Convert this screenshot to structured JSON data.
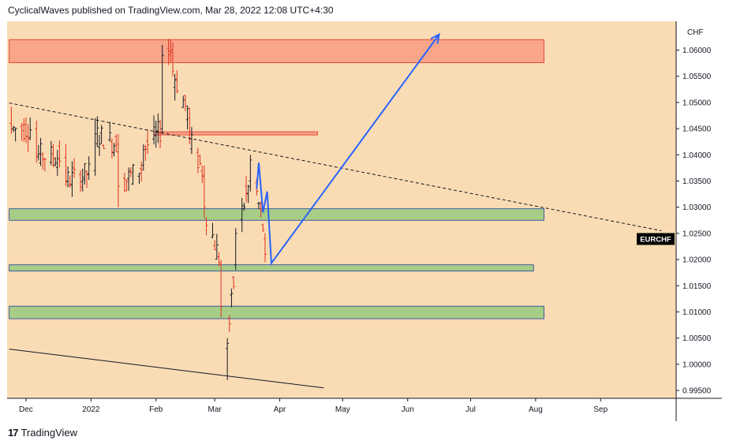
{
  "header": {
    "attribution": "CyclicalWaves published on TradingView.com, Mar 28, 2022 12:08 UTC+4:30"
  },
  "footer": {
    "logo_glyph": "17",
    "brand": "TradingView"
  },
  "chart_data": {
    "type": "candlestick",
    "symbol": "EURCHF",
    "currency": "CHF",
    "ylim": [
      0.9935,
      1.0655
    ],
    "y_ticks": [
      "1.06000",
      "1.05500",
      "1.05000",
      "1.04500",
      "1.04000",
      "1.03500",
      "1.03000",
      "1.02500",
      "1.02000",
      "1.01500",
      "1.01000",
      "1.00500",
      "1.00000",
      "0.99500"
    ],
    "x_ticks": [
      "Dec",
      "2022",
      "Feb",
      "Mar",
      "Apr",
      "May",
      "Jun",
      "Jul",
      "Aug",
      "Sep"
    ],
    "last_price_label": "EURCHF",
    "colors": {
      "background": "#fadcb4",
      "up": "#131722",
      "down": "#e0301e",
      "projection": "#2962ff",
      "resistance_zone": "#f8a58a",
      "support_zone": "#a7cd87"
    },
    "zones": [
      {
        "kind": "resistance",
        "from": 1.0576,
        "to": 1.062,
        "start": "Nov 23",
        "end": "Aug 5"
      },
      {
        "kind": "resistance",
        "from": 1.044,
        "to": 1.0444,
        "start": "Jan 31",
        "end": "Apr 19"
      },
      {
        "kind": "support",
        "from": 1.0275,
        "to": 1.0297,
        "start": "Nov 23",
        "end": "Aug 5"
      },
      {
        "kind": "support",
        "from": 1.0178,
        "to": 1.019,
        "start": "Nov 23",
        "end": "Jul 31"
      },
      {
        "kind": "support",
        "from": 1.0087,
        "to": 1.0111,
        "start": "Nov 23",
        "end": "Aug 5"
      }
    ],
    "trendlines": [
      {
        "style": "dashed",
        "points": [
          [
            "Nov 23",
            1.0499
          ],
          [
            "Sep 30",
            1.0255
          ]
        ]
      },
      {
        "style": "solid",
        "points": [
          [
            "Nov 23",
            1.0029
          ],
          [
            "Apr 22",
            0.9955
          ]
        ]
      }
    ],
    "projection": [
      [
        "Mar 21",
        1.0335
      ],
      [
        "Mar 22",
        1.0385
      ],
      [
        "Mar 24",
        1.029
      ],
      [
        "Mar 26",
        1.033
      ],
      [
        "Mar 28",
        1.0193
      ],
      [
        "Jun 16",
        1.063
      ]
    ],
    "candles_sampled": [
      {
        "d": "Nov 24",
        "o": 1.046,
        "h": 1.0492,
        "l": 1.044,
        "c": 1.045
      },
      {
        "d": "Dec 6",
        "o": 1.045,
        "h": 1.0465,
        "l": 1.0385,
        "c": 1.04
      },
      {
        "d": "Dec 20",
        "o": 1.0395,
        "h": 1.042,
        "l": 1.034,
        "c": 1.035
      },
      {
        "d": "Jan 3",
        "o": 1.037,
        "h": 1.047,
        "l": 1.036,
        "c": 1.044
      },
      {
        "d": "Jan 14",
        "o": 1.042,
        "h": 1.044,
        "l": 1.03,
        "c": 1.034
      },
      {
        "d": "Jan 26",
        "o": 1.038,
        "h": 1.042,
        "l": 1.037,
        "c": 1.041
      },
      {
        "d": "Feb 4",
        "o": 1.045,
        "h": 1.061,
        "l": 1.044,
        "c": 1.059
      },
      {
        "d": "Feb 9",
        "o": 1.06,
        "h": 1.0615,
        "l": 1.055,
        "c": 1.056
      },
      {
        "d": "Feb 17",
        "o": 1.047,
        "h": 1.049,
        "l": 1.042,
        "c": 1.043
      },
      {
        "d": "Feb 24",
        "o": 1.036,
        "h": 1.038,
        "l": 1.028,
        "c": 1.03
      },
      {
        "d": "Mar 4",
        "o": 1.019,
        "h": 1.02,
        "l": 1.009,
        "c": 1.011
      },
      {
        "d": "Mar 7",
        "o": 1.003,
        "h": 1.005,
        "l": 0.997,
        "c": 1.004
      },
      {
        "d": "Mar 11",
        "o": 1.019,
        "h": 1.026,
        "l": 1.018,
        "c": 1.025
      },
      {
        "d": "Mar 18",
        "o": 1.035,
        "h": 1.04,
        "l": 1.033,
        "c": 1.039
      },
      {
        "d": "Mar 25",
        "o": 1.024,
        "h": 1.025,
        "l": 1.0195,
        "c": 1.021
      }
    ]
  }
}
